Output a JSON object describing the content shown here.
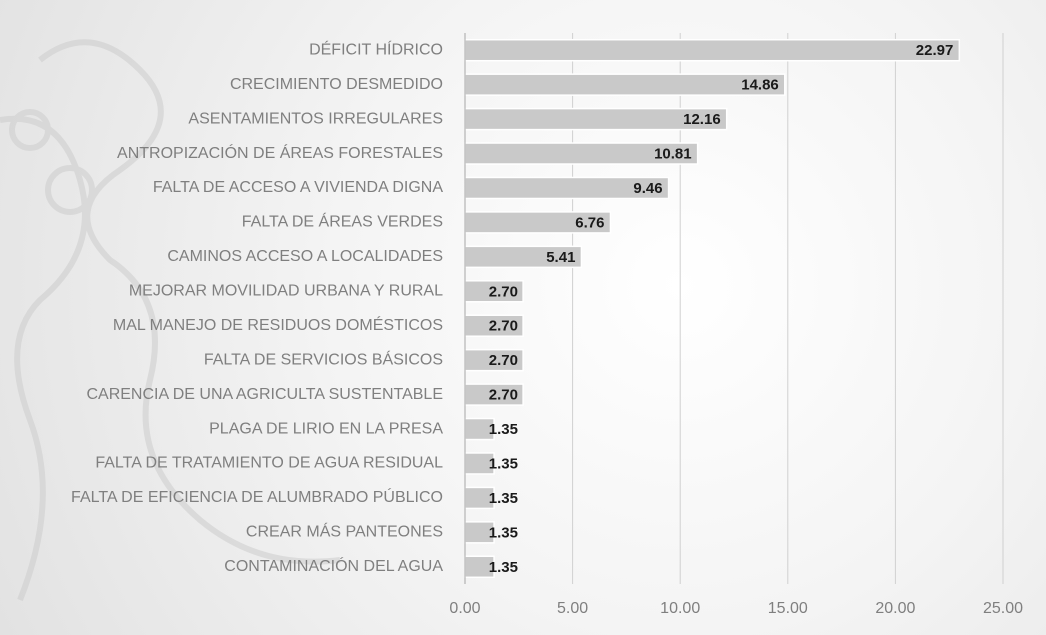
{
  "chart_data": {
    "type": "hbar",
    "categories": [
      "DÉFICIT HÍDRICO",
      "CRECIMIENTO DESMEDIDO",
      "ASENTAMIENTOS IRREGULARES",
      "ANTROPIZACIÓN DE ÁREAS FORESTALES",
      "FALTA DE ACCESO A VIVIENDA DIGNA",
      "FALTA DE ÁREAS VERDES",
      "CAMINOS ACCESO A LOCALIDADES",
      "MEJORAR MOVILIDAD URBANA Y RURAL",
      "MAL MANEJO DE RESIDUOS DOMÉSTICOS",
      "FALTA DE SERVICIOS BÁSICOS",
      "CARENCIA DE UNA AGRICULTA SUSTENTABLE",
      "PLAGA DE LIRIO EN LA PRESA",
      "FALTA DE TRATAMIENTO DE AGUA RESIDUAL",
      "FALTA DE EFICIENCIA DE ALUMBRADO PÚBLICO",
      "CREAR MÁS PANTEONES",
      "CONTAMINACIÓN DEL AGUA"
    ],
    "values": [
      22.97,
      14.86,
      12.16,
      10.81,
      9.46,
      6.76,
      5.41,
      2.7,
      2.7,
      2.7,
      2.7,
      1.35,
      1.35,
      1.35,
      1.35,
      1.35
    ],
    "value_labels": [
      "22.97",
      "14.86",
      "12.16",
      "10.81",
      "9.46",
      "6.76",
      "5.41",
      "2.70",
      "2.70",
      "2.70",
      "2.70",
      "1.35",
      "1.35",
      "1.35",
      "1.35",
      "1.35"
    ],
    "color": "#c9c9c9",
    "xlim": [
      0,
      25
    ],
    "xticks": [
      {
        "value": 0,
        "label": "0.00"
      },
      {
        "value": 5,
        "label": "5.00"
      },
      {
        "value": 10,
        "label": "10.00"
      },
      {
        "value": 15,
        "label": "15.00"
      },
      {
        "value": 20,
        "label": "20.00"
      },
      {
        "value": 25,
        "label": "25.00"
      }
    ],
    "grid": true
  }
}
